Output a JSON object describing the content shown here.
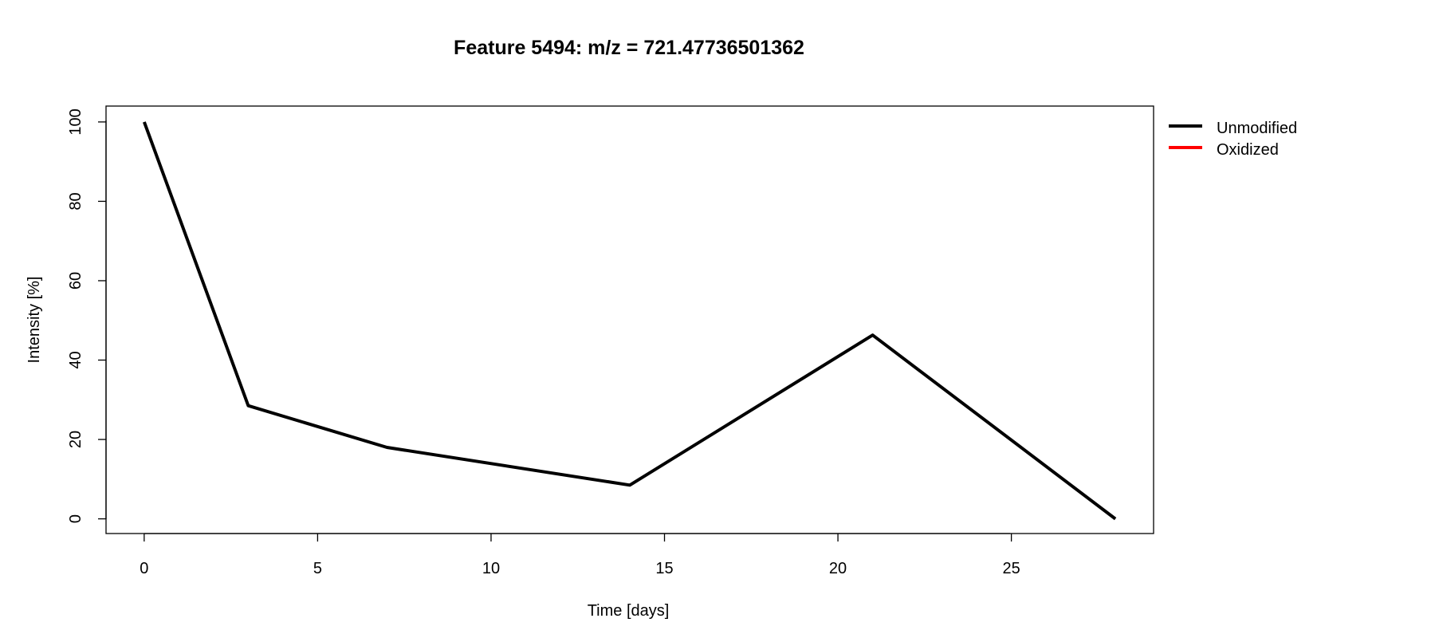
{
  "chart_data": {
    "type": "line",
    "title": "Feature 5494: m/z = 721.47736501362",
    "xlabel": "Time [days]",
    "ylabel": "Intensity [%]",
    "xlim": [
      -1.1,
      29.1
    ],
    "ylim": [
      -3.7,
      104
    ],
    "x_ticks": [
      0,
      5,
      10,
      15,
      20,
      25
    ],
    "y_ticks": [
      0,
      20,
      40,
      60,
      80,
      100
    ],
    "grid": false,
    "legend_position": "top-right outside plot",
    "series": [
      {
        "name": "Unmodified",
        "color": "#000000",
        "x": [
          0,
          3,
          7,
          14,
          21,
          28
        ],
        "y": [
          100,
          28.5,
          18,
          8.5,
          46.3,
          0
        ]
      },
      {
        "name": "Oxidized",
        "color": "#ff0000",
        "x": [],
        "y": []
      }
    ]
  }
}
